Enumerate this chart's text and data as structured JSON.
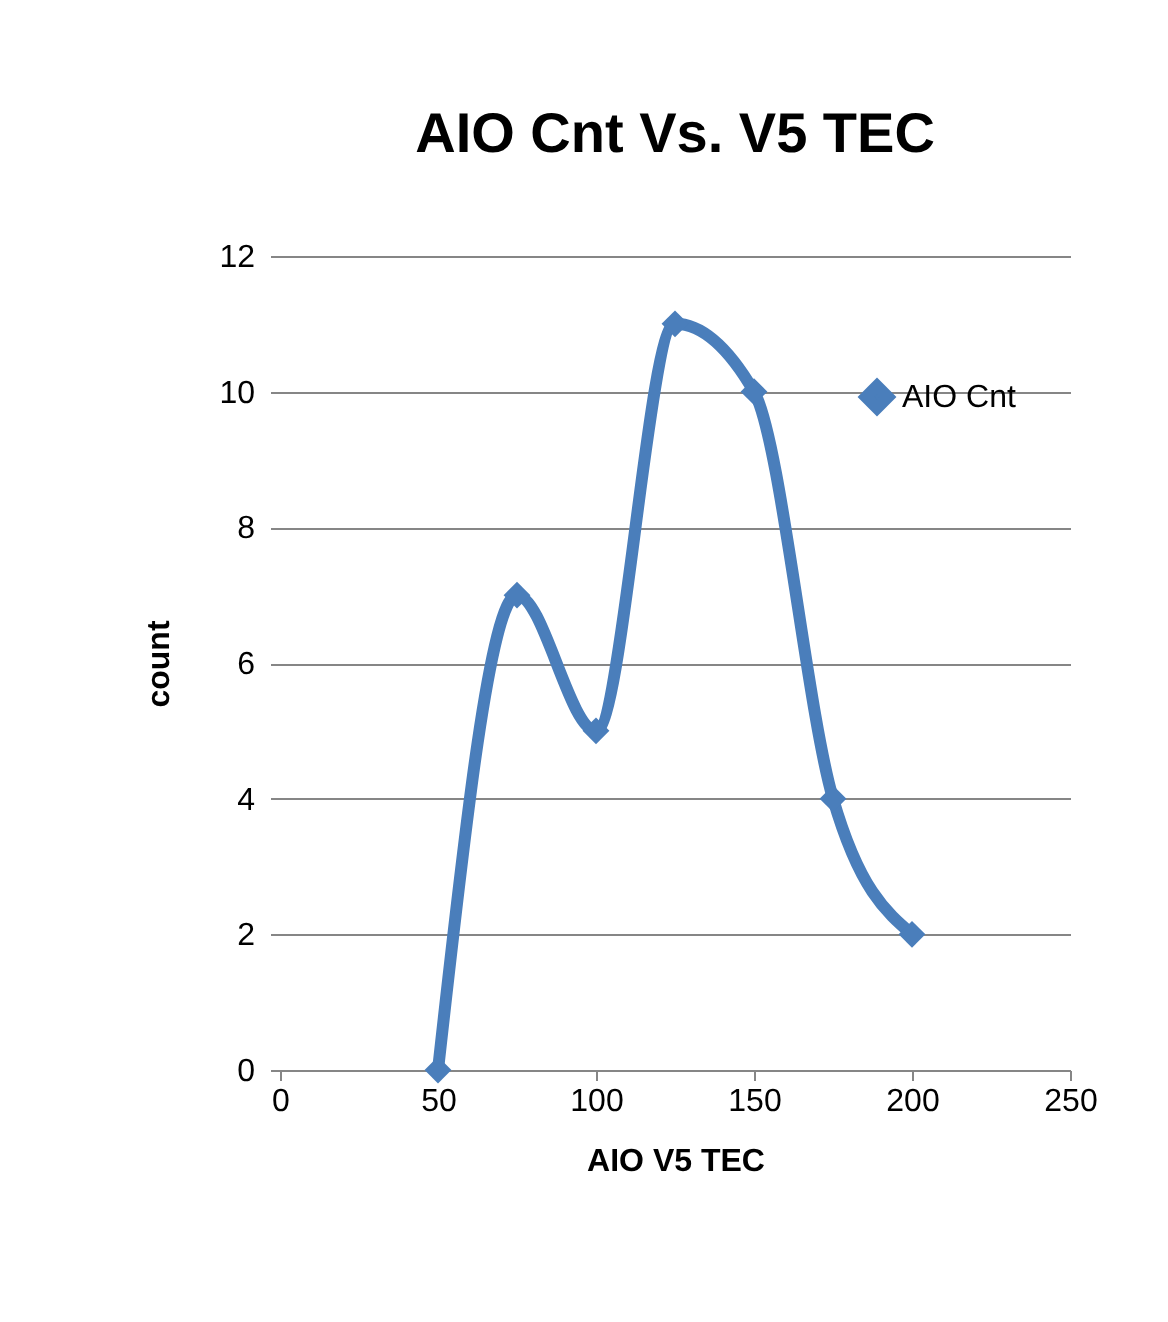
{
  "chart_data": {
    "type": "line",
    "title": "AIO Cnt Vs. V5 TEC",
    "xlabel": "AIO V5 TEC",
    "ylabel": "count",
    "x": [
      50,
      75,
      100,
      125,
      150,
      175,
      200
    ],
    "series": [
      {
        "name": "AIO Cnt",
        "color": "#4a7ebb",
        "values": [
          0,
          7,
          5,
          11,
          10,
          4,
          2
        ]
      }
    ],
    "xlim": [
      0,
      250
    ],
    "xticks": [
      0,
      50,
      100,
      150,
      200,
      250
    ],
    "ylim": [
      0,
      12
    ],
    "yticks": [
      0,
      2,
      4,
      6,
      8,
      10,
      12
    ],
    "grid": "y",
    "legend": "right",
    "marker": "diamond",
    "line_style": "solid"
  }
}
